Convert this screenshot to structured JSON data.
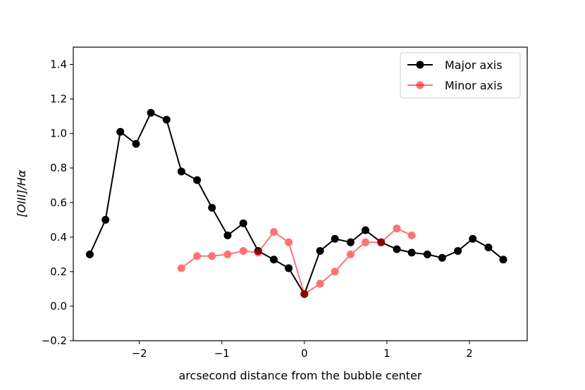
{
  "chart_data": {
    "type": "line",
    "xlabel": "arcsecond distance from the bubble center",
    "ylabel": "[OIII]/Hα",
    "xlim": [
      -2.8,
      2.7
    ],
    "ylim": [
      -0.2,
      1.5
    ],
    "xticks": [
      -2,
      -1,
      0,
      1,
      2
    ],
    "xtick_labels": [
      "−2",
      "−1",
      "0",
      "1",
      "2"
    ],
    "yticks": [
      -0.2,
      0.0,
      0.2,
      0.4,
      0.6,
      0.8,
      1.0,
      1.2,
      1.4
    ],
    "ytick_labels": [
      "−0.2",
      "0.0",
      "0.2",
      "0.4",
      "0.6",
      "0.8",
      "1.0",
      "1.2",
      "1.4"
    ],
    "grid": false,
    "legend_position": "top-right",
    "series": [
      {
        "name": "Major axis",
        "color": "#000000",
        "opacity": 1.0,
        "x": [
          -2.6,
          -2.41,
          -2.23,
          -2.04,
          -1.86,
          -1.67,
          -1.49,
          -1.3,
          -1.12,
          -0.93,
          -0.74,
          -0.56,
          -0.37,
          -0.19,
          0.0,
          0.19,
          0.37,
          0.56,
          0.74,
          0.93,
          1.12,
          1.3,
          1.49,
          1.67,
          1.86,
          2.04,
          2.23,
          2.41
        ],
        "y": [
          0.3,
          0.5,
          1.01,
          0.94,
          1.12,
          1.08,
          0.78,
          0.73,
          0.57,
          0.41,
          0.48,
          0.32,
          0.27,
          0.22,
          0.07,
          0.32,
          0.39,
          0.37,
          0.44,
          0.37,
          0.33,
          0.31,
          0.3,
          0.28,
          0.32,
          0.39,
          0.34,
          0.27
        ]
      },
      {
        "name": "Minor axis",
        "color": "#ff0000",
        "opacity": 0.55,
        "x": [
          -1.49,
          -1.3,
          -1.12,
          -0.93,
          -0.74,
          -0.56,
          -0.37,
          -0.19,
          0.0,
          0.19,
          0.37,
          0.56,
          0.74,
          0.93,
          1.12,
          1.3
        ],
        "y": [
          0.22,
          0.29,
          0.29,
          0.3,
          0.32,
          0.31,
          0.43,
          0.37,
          0.07,
          0.13,
          0.2,
          0.3,
          0.37,
          0.37,
          0.45,
          0.41
        ]
      }
    ]
  }
}
